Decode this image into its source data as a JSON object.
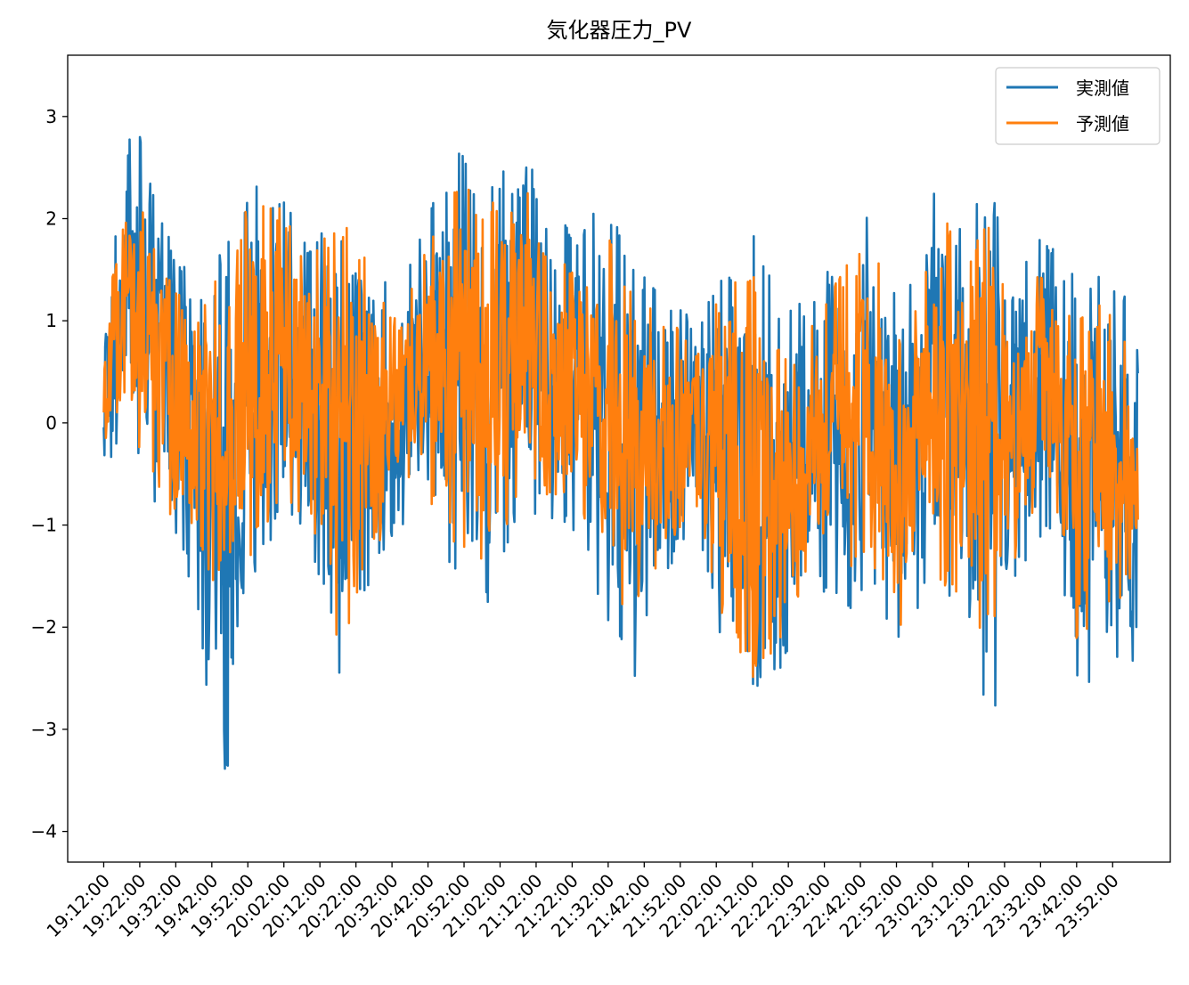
{
  "chart_data": {
    "type": "line",
    "title": "気化器圧力_PV",
    "xlabel": "",
    "ylabel": "",
    "x_ticks": [
      "19:12:00",
      "19:22:00",
      "19:32:00",
      "19:42:00",
      "19:52:00",
      "20:02:00",
      "20:12:00",
      "20:22:00",
      "20:32:00",
      "20:42:00",
      "20:52:00",
      "21:02:00",
      "21:12:00",
      "21:22:00",
      "21:32:00",
      "21:42:00",
      "21:52:00",
      "22:02:00",
      "22:12:00",
      "22:22:00",
      "22:32:00",
      "22:42:00",
      "22:52:00",
      "23:02:00",
      "23:12:00",
      "23:22:00",
      "23:32:00",
      "23:42:00",
      "23:52:00"
    ],
    "x_range": [
      "19:12:00",
      "23:59:00"
    ],
    "y_ticks": [
      3,
      2,
      1,
      0,
      -1,
      -2,
      -3,
      -4
    ],
    "ylim": [
      -4.3,
      3.6
    ],
    "grid": false,
    "legend_position": "top-right",
    "series": [
      {
        "name": "実測値",
        "color": "#1f77b4",
        "envelope_upper": [
          1.1,
          3.2,
          2.1,
          1.35,
          1.7,
          2.4,
          2.2,
          1.8,
          2.5,
          1.7,
          1.25,
          2.1,
          2.7,
          2.3,
          3.0,
          2.0,
          1.9,
          2.3,
          1.5,
          1.35,
          1.0,
          1.6,
          1.95,
          1.1,
          1.35,
          1.8,
          2.1,
          1.1,
          2.4,
          1.9,
          2.4,
          1.6,
          1.9,
          1.4,
          1.6,
          0.95
        ],
        "envelope_lower": [
          -0.4,
          -0.3,
          -1.0,
          -1.6,
          -3.9,
          -1.6,
          -1.0,
          -1.3,
          -2.5,
          -1.6,
          -1.0,
          -1.0,
          -1.6,
          -1.8,
          -1.0,
          -0.9,
          -1.1,
          -1.9,
          -2.5,
          -1.5,
          -1.0,
          -2.3,
          -3.4,
          -2.4,
          -1.6,
          -1.9,
          -1.6,
          -2.3,
          -1.6,
          -2.2,
          -3.2,
          -1.5,
          -1.0,
          -2.8,
          -2.2,
          -2.6
        ]
      },
      {
        "name": "予測値",
        "color": "#ff7f0e",
        "envelope_upper": [
          1.0,
          2.5,
          1.6,
          1.0,
          1.5,
          2.3,
          2.1,
          1.6,
          2.2,
          1.5,
          1.0,
          1.8,
          2.5,
          2.1,
          2.6,
          1.6,
          1.6,
          2.1,
          1.2,
          1.1,
          0.7,
          1.4,
          1.6,
          0.6,
          1.0,
          1.5,
          1.8,
          0.8,
          2.3,
          1.7,
          2.1,
          1.4,
          1.6,
          1.1,
          1.2,
          0.5
        ],
        "envelope_lower": [
          -0.2,
          -0.1,
          -0.8,
          -1.3,
          -2.3,
          -1.3,
          -0.8,
          -1.0,
          -2.3,
          -1.4,
          -0.8,
          -0.8,
          -1.3,
          -1.6,
          -0.8,
          -0.7,
          -0.9,
          -1.6,
          -2.2,
          -1.3,
          -0.8,
          -2.0,
          -2.5,
          -2.2,
          -1.3,
          -1.6,
          -1.4,
          -2.0,
          -1.4,
          -1.9,
          -2.1,
          -1.2,
          -0.8,
          -2.3,
          -1.9,
          -1.5
        ]
      }
    ]
  }
}
